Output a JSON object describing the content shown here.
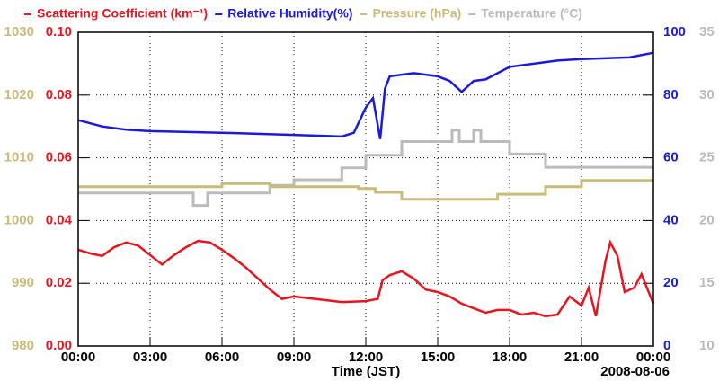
{
  "chart_data": {
    "type": "line",
    "x_label": "Time (JST)",
    "date_label": "2008-08-06",
    "xlim": [
      0,
      24
    ],
    "xticks": [
      {
        "value": 0,
        "label": "00:00"
      },
      {
        "value": 3,
        "label": "03:00"
      },
      {
        "value": 6,
        "label": "06:00"
      },
      {
        "value": 9,
        "label": "09:00"
      },
      {
        "value": 12,
        "label": "12:00"
      },
      {
        "value": 15,
        "label": "15:00"
      },
      {
        "value": 18,
        "label": "18:00"
      },
      {
        "value": 21,
        "label": "21:00"
      },
      {
        "value": 24,
        "label": "00:00"
      }
    ],
    "grid": true,
    "y_axes": [
      {
        "lim": [
          0,
          0.1
        ],
        "ticks": [
          {
            "value": 0,
            "label": "0.00"
          },
          {
            "value": 0.02,
            "label": "0.02"
          },
          {
            "value": 0.04,
            "label": "0.04"
          },
          {
            "value": 0.06,
            "label": "0.06"
          },
          {
            "value": 0.08,
            "label": "0.08"
          },
          {
            "value": 0.1,
            "label": "0.10"
          }
        ]
      },
      {
        "lim": [
          0,
          100
        ],
        "ticks": [
          0,
          20,
          40,
          60,
          80,
          100
        ]
      },
      {
        "lim": [
          980,
          1030
        ],
        "ticks": [
          980,
          990,
          1000,
          1010,
          1020,
          1030
        ]
      },
      {
        "lim": [
          10,
          35
        ],
        "ticks": [
          10,
          15,
          20,
          25,
          30,
          35
        ]
      }
    ],
    "series": [
      {
        "name": "Scattering Coefficient (km⁻¹)",
        "color": "#e8141e",
        "axis": 0,
        "x": [
          0,
          0.5,
          1,
          1.5,
          2,
          2.5,
          3,
          3.5,
          4,
          4.5,
          5,
          5.5,
          6,
          6.5,
          7,
          7.5,
          8,
          8.5,
          9,
          10,
          11,
          12,
          12.5,
          12.7,
          13,
          13.5,
          14,
          14.5,
          15,
          15.5,
          16,
          16.5,
          17,
          17.5,
          18,
          18.5,
          19,
          19.5,
          20,
          20.5,
          21,
          21.3,
          21.6,
          22,
          22.2,
          22.5,
          22.8,
          23.2,
          23.5,
          23.8,
          24
        ],
        "values": [
          0.0307,
          0.0295,
          0.0287,
          0.0315,
          0.033,
          0.032,
          0.029,
          0.026,
          0.029,
          0.0315,
          0.0335,
          0.033,
          0.0307,
          0.028,
          0.025,
          0.0215,
          0.018,
          0.015,
          0.0158,
          0.0149,
          0.014,
          0.0143,
          0.015,
          0.021,
          0.0226,
          0.0238,
          0.0215,
          0.018,
          0.0172,
          0.0158,
          0.0135,
          0.012,
          0.0106,
          0.0115,
          0.0115,
          0.01,
          0.0106,
          0.0095,
          0.01,
          0.0158,
          0.0129,
          0.0186,
          0.0095,
          0.0272,
          0.033,
          0.0287,
          0.0172,
          0.0186,
          0.0229,
          0.0172,
          0.0135
        ]
      },
      {
        "name": "Relative Humidity(%)",
        "color": "#1a1adf",
        "axis": 1,
        "x": [
          0,
          1,
          2,
          3,
          6,
          9,
          11,
          11.5,
          12,
          12.3,
          12.6,
          12.8,
          13,
          14,
          15,
          15.5,
          16,
          16.5,
          17,
          18,
          19,
          20,
          21,
          23,
          24
        ],
        "values": [
          72,
          70,
          69,
          68.5,
          68,
          67.3,
          66.8,
          68,
          76,
          79,
          66,
          82,
          86,
          87,
          86,
          84.5,
          81,
          84.5,
          85,
          89,
          90,
          91,
          91.5,
          92,
          93.5
        ]
      },
      {
        "name": "Pressure (hPa)",
        "color": "#c8bc78",
        "axis": 2,
        "x": [
          0,
          6,
          6,
          8,
          8,
          11.7,
          11.7,
          12.4,
          12.4,
          13.5,
          13.5,
          17.5,
          17.5,
          19.5,
          19.5,
          21,
          21,
          24
        ],
        "values": [
          1005.4,
          1005.4,
          1005.9,
          1005.9,
          1005.4,
          1005.4,
          1005.1,
          1005.1,
          1004.5,
          1004.5,
          1003.4,
          1003.4,
          1004.2,
          1004.2,
          1005.4,
          1005.4,
          1006.4,
          1006.4
        ]
      },
      {
        "name": "Temperature (°C)",
        "color": "#bbbbbb",
        "axis": 3,
        "x": [
          0,
          4.8,
          4.8,
          5.4,
          5.4,
          8,
          8,
          9,
          9,
          11,
          11,
          12,
          12,
          13.5,
          13.5,
          15.6,
          15.6,
          15.9,
          15.9,
          16.5,
          16.5,
          16.8,
          16.8,
          18,
          18,
          19.5,
          19.5,
          24
        ],
        "values": [
          22.2,
          22.2,
          21.2,
          21.2,
          22.2,
          22.2,
          22.8,
          22.8,
          23.25,
          23.25,
          24.2,
          24.2,
          25.2,
          25.2,
          26.3,
          26.3,
          27.2,
          27.2,
          26.3,
          26.3,
          27.2,
          27.2,
          26.3,
          26.3,
          25.3,
          25.3,
          24.25,
          24.25
        ]
      }
    ]
  }
}
